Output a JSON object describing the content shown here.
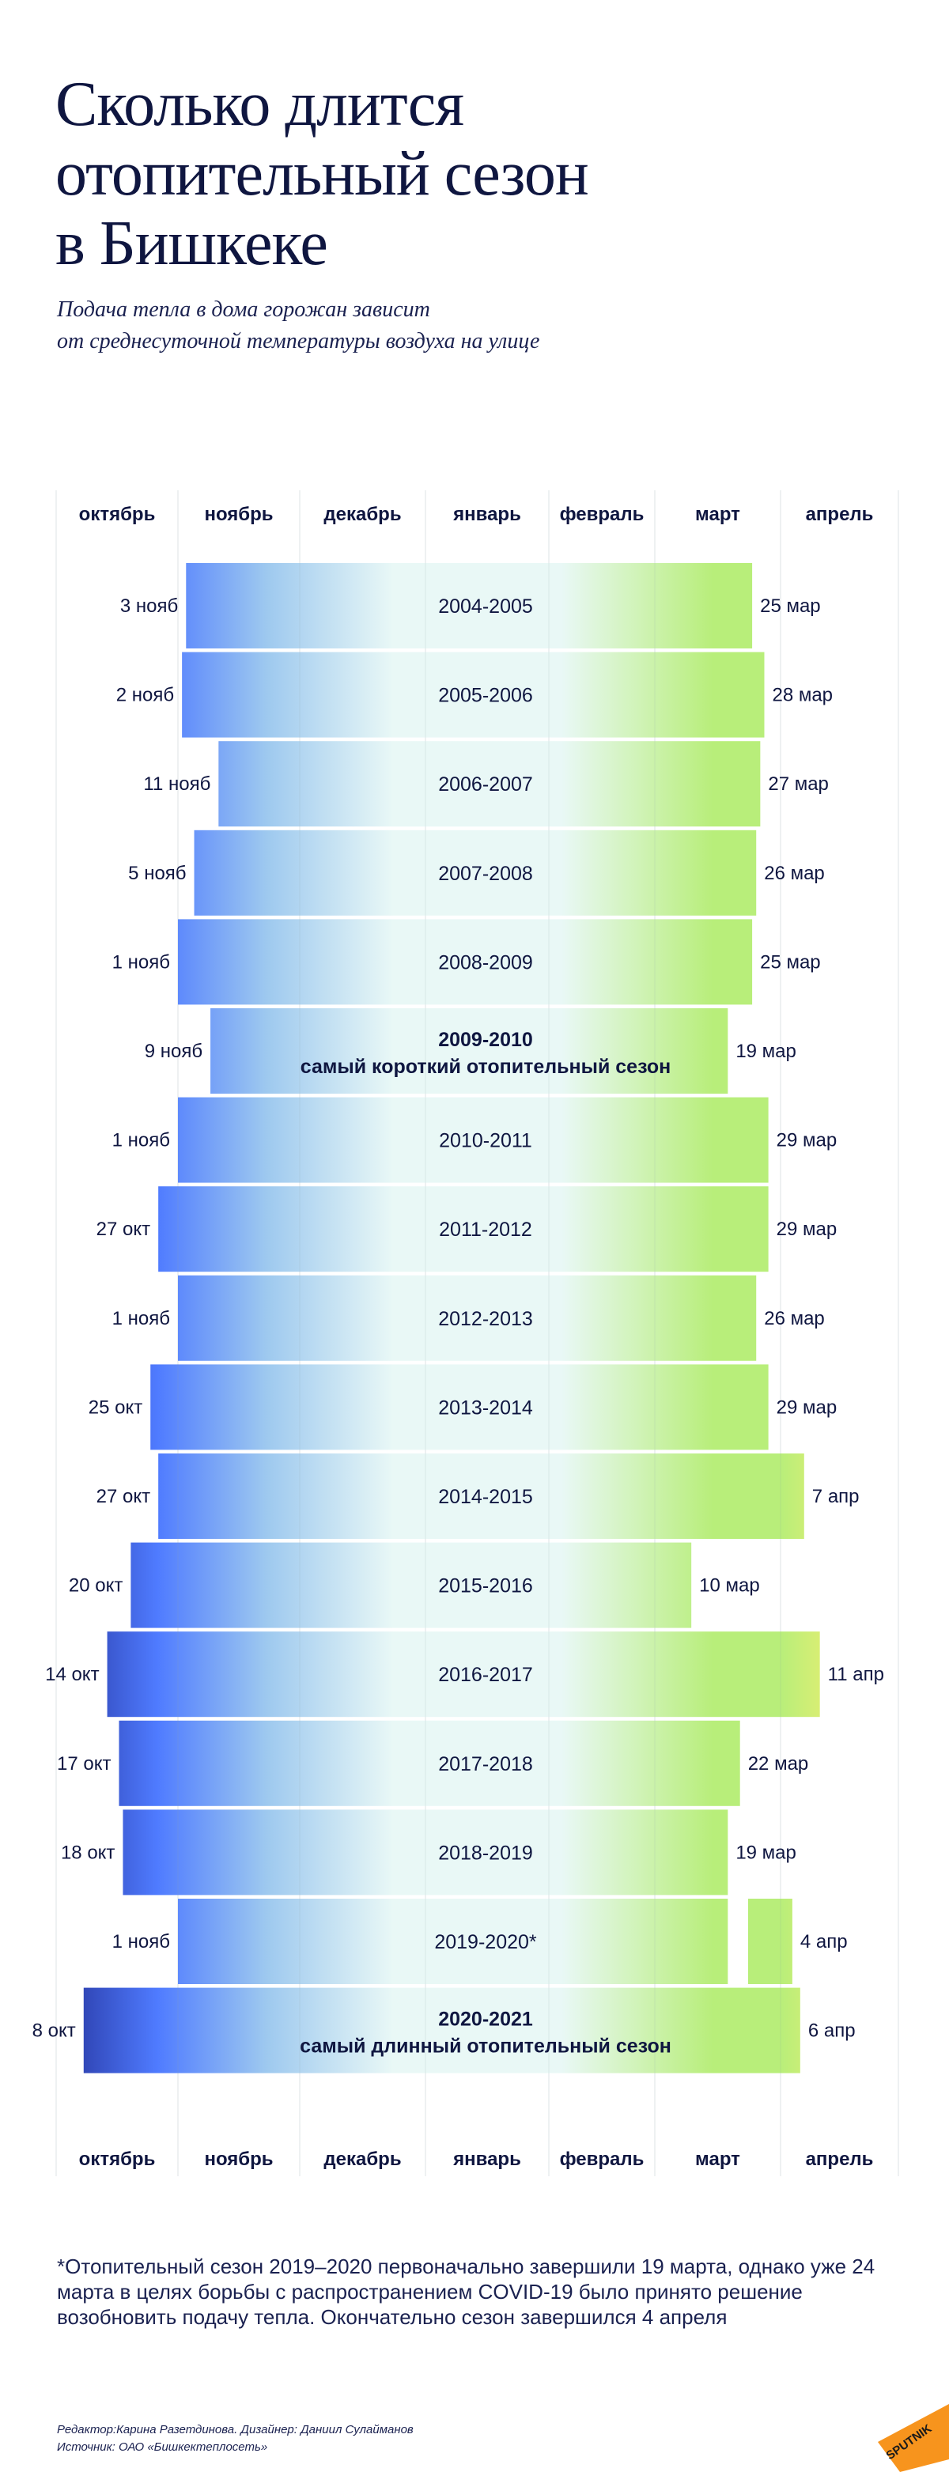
{
  "header": {
    "title_lines": [
      "Сколько длится",
      "отопительный сезон",
      "в Бишкеке"
    ],
    "subtitle_lines": [
      "Подача тепла в дома горожан зависит",
      "от среднесуточной температуры воздуха на улице"
    ]
  },
  "chart_data": {
    "type": "bar",
    "orientation": "horizontal-range",
    "title": "Сколько длится отопительный сезон в Бишкеке",
    "x_axis": {
      "tick_labels": [
        "октябрь",
        "ноябрь",
        "декабрь",
        "январь",
        "февраль",
        "март",
        "апрель"
      ],
      "range": [
        "10-01",
        "04-30"
      ],
      "grid": true
    },
    "colors": {
      "deep_blue": "#26349e",
      "blue": "#4f7bff",
      "light_blue": "#9ec9ef",
      "pale": "#e9f8f6",
      "green": "#b8ee7a",
      "yellow": "#fbef6d"
    },
    "series": [
      {
        "season": "2004-2005",
        "start": "11-03",
        "end": "03-25",
        "start_label": "3 нояб",
        "end_label": "25 мар"
      },
      {
        "season": "2005-2006",
        "start": "11-02",
        "end": "03-28",
        "start_label": "2 нояб",
        "end_label": "28 мар"
      },
      {
        "season": "2006-2007",
        "start": "11-11",
        "end": "03-27",
        "start_label": "11 нояб",
        "end_label": "27 мар"
      },
      {
        "season": "2007-2008",
        "start": "11-05",
        "end": "03-26",
        "start_label": "5 нояб",
        "end_label": "26 мар"
      },
      {
        "season": "2008-2009",
        "start": "11-01",
        "end": "03-25",
        "start_label": "1 нояб",
        "end_label": "25 мар"
      },
      {
        "season": "2009-2010",
        "start": "11-09",
        "end": "03-19",
        "start_label": "9 нояб",
        "end_label": "19 мар",
        "note": "самый короткий отопительный сезон"
      },
      {
        "season": "2010-2011",
        "start": "11-01",
        "end": "03-29",
        "start_label": "1 нояб",
        "end_label": "29 мар"
      },
      {
        "season": "2011-2012",
        "start": "10-27",
        "end": "03-29",
        "start_label": "27 окт",
        "end_label": "29 мар"
      },
      {
        "season": "2012-2013",
        "start": "11-01",
        "end": "03-26",
        "start_label": "1 нояб",
        "end_label": "26 мар"
      },
      {
        "season": "2013-2014",
        "start": "10-25",
        "end": "03-29",
        "start_label": "25 окт",
        "end_label": "29 мар"
      },
      {
        "season": "2014-2015",
        "start": "10-27",
        "end": "04-07",
        "start_label": "27 окт",
        "end_label": "7 апр"
      },
      {
        "season": "2015-2016",
        "start": "10-20",
        "end": "03-10",
        "start_label": "20 окт",
        "end_label": "10 мар"
      },
      {
        "season": "2016-2017",
        "start": "10-14",
        "end": "04-11",
        "start_label": "14 окт",
        "end_label": "11 апр"
      },
      {
        "season": "2017-2018",
        "start": "10-17",
        "end": "03-22",
        "start_label": "17 окт",
        "end_label": "22 мар"
      },
      {
        "season": "2018-2019",
        "start": "10-18",
        "end": "03-19",
        "start_label": "18 окт",
        "end_label": "19 мар"
      },
      {
        "season": "2019-2020*",
        "start": "11-01",
        "end": "03-19",
        "resume": "03-24",
        "resume_end": "04-04",
        "start_label": "1 нояб",
        "end_label": "4 апр"
      },
      {
        "season": "2020-2021",
        "start": "10-08",
        "end": "04-06",
        "start_label": "8 окт",
        "end_label": "6 апр",
        "note": "самый длинный отопительный сезон"
      }
    ]
  },
  "footnote": "*Отопительный сезон 2019–2020 первоначально завершили 19 марта, однако уже 24 марта в целях борьбы с распространением COVID-19 было принято решение возобновить подачу тепла. Окончательно сезон завершился 4 апреля",
  "credits": {
    "editor": "Редактор:Карина Разетдинова. Дизайнер: Даниил Сулайманов",
    "source": "Источник: ОАО «Бишкектеплосеть»"
  },
  "logo": {
    "text": "SPUTNIK",
    "color": "#f7941d"
  }
}
